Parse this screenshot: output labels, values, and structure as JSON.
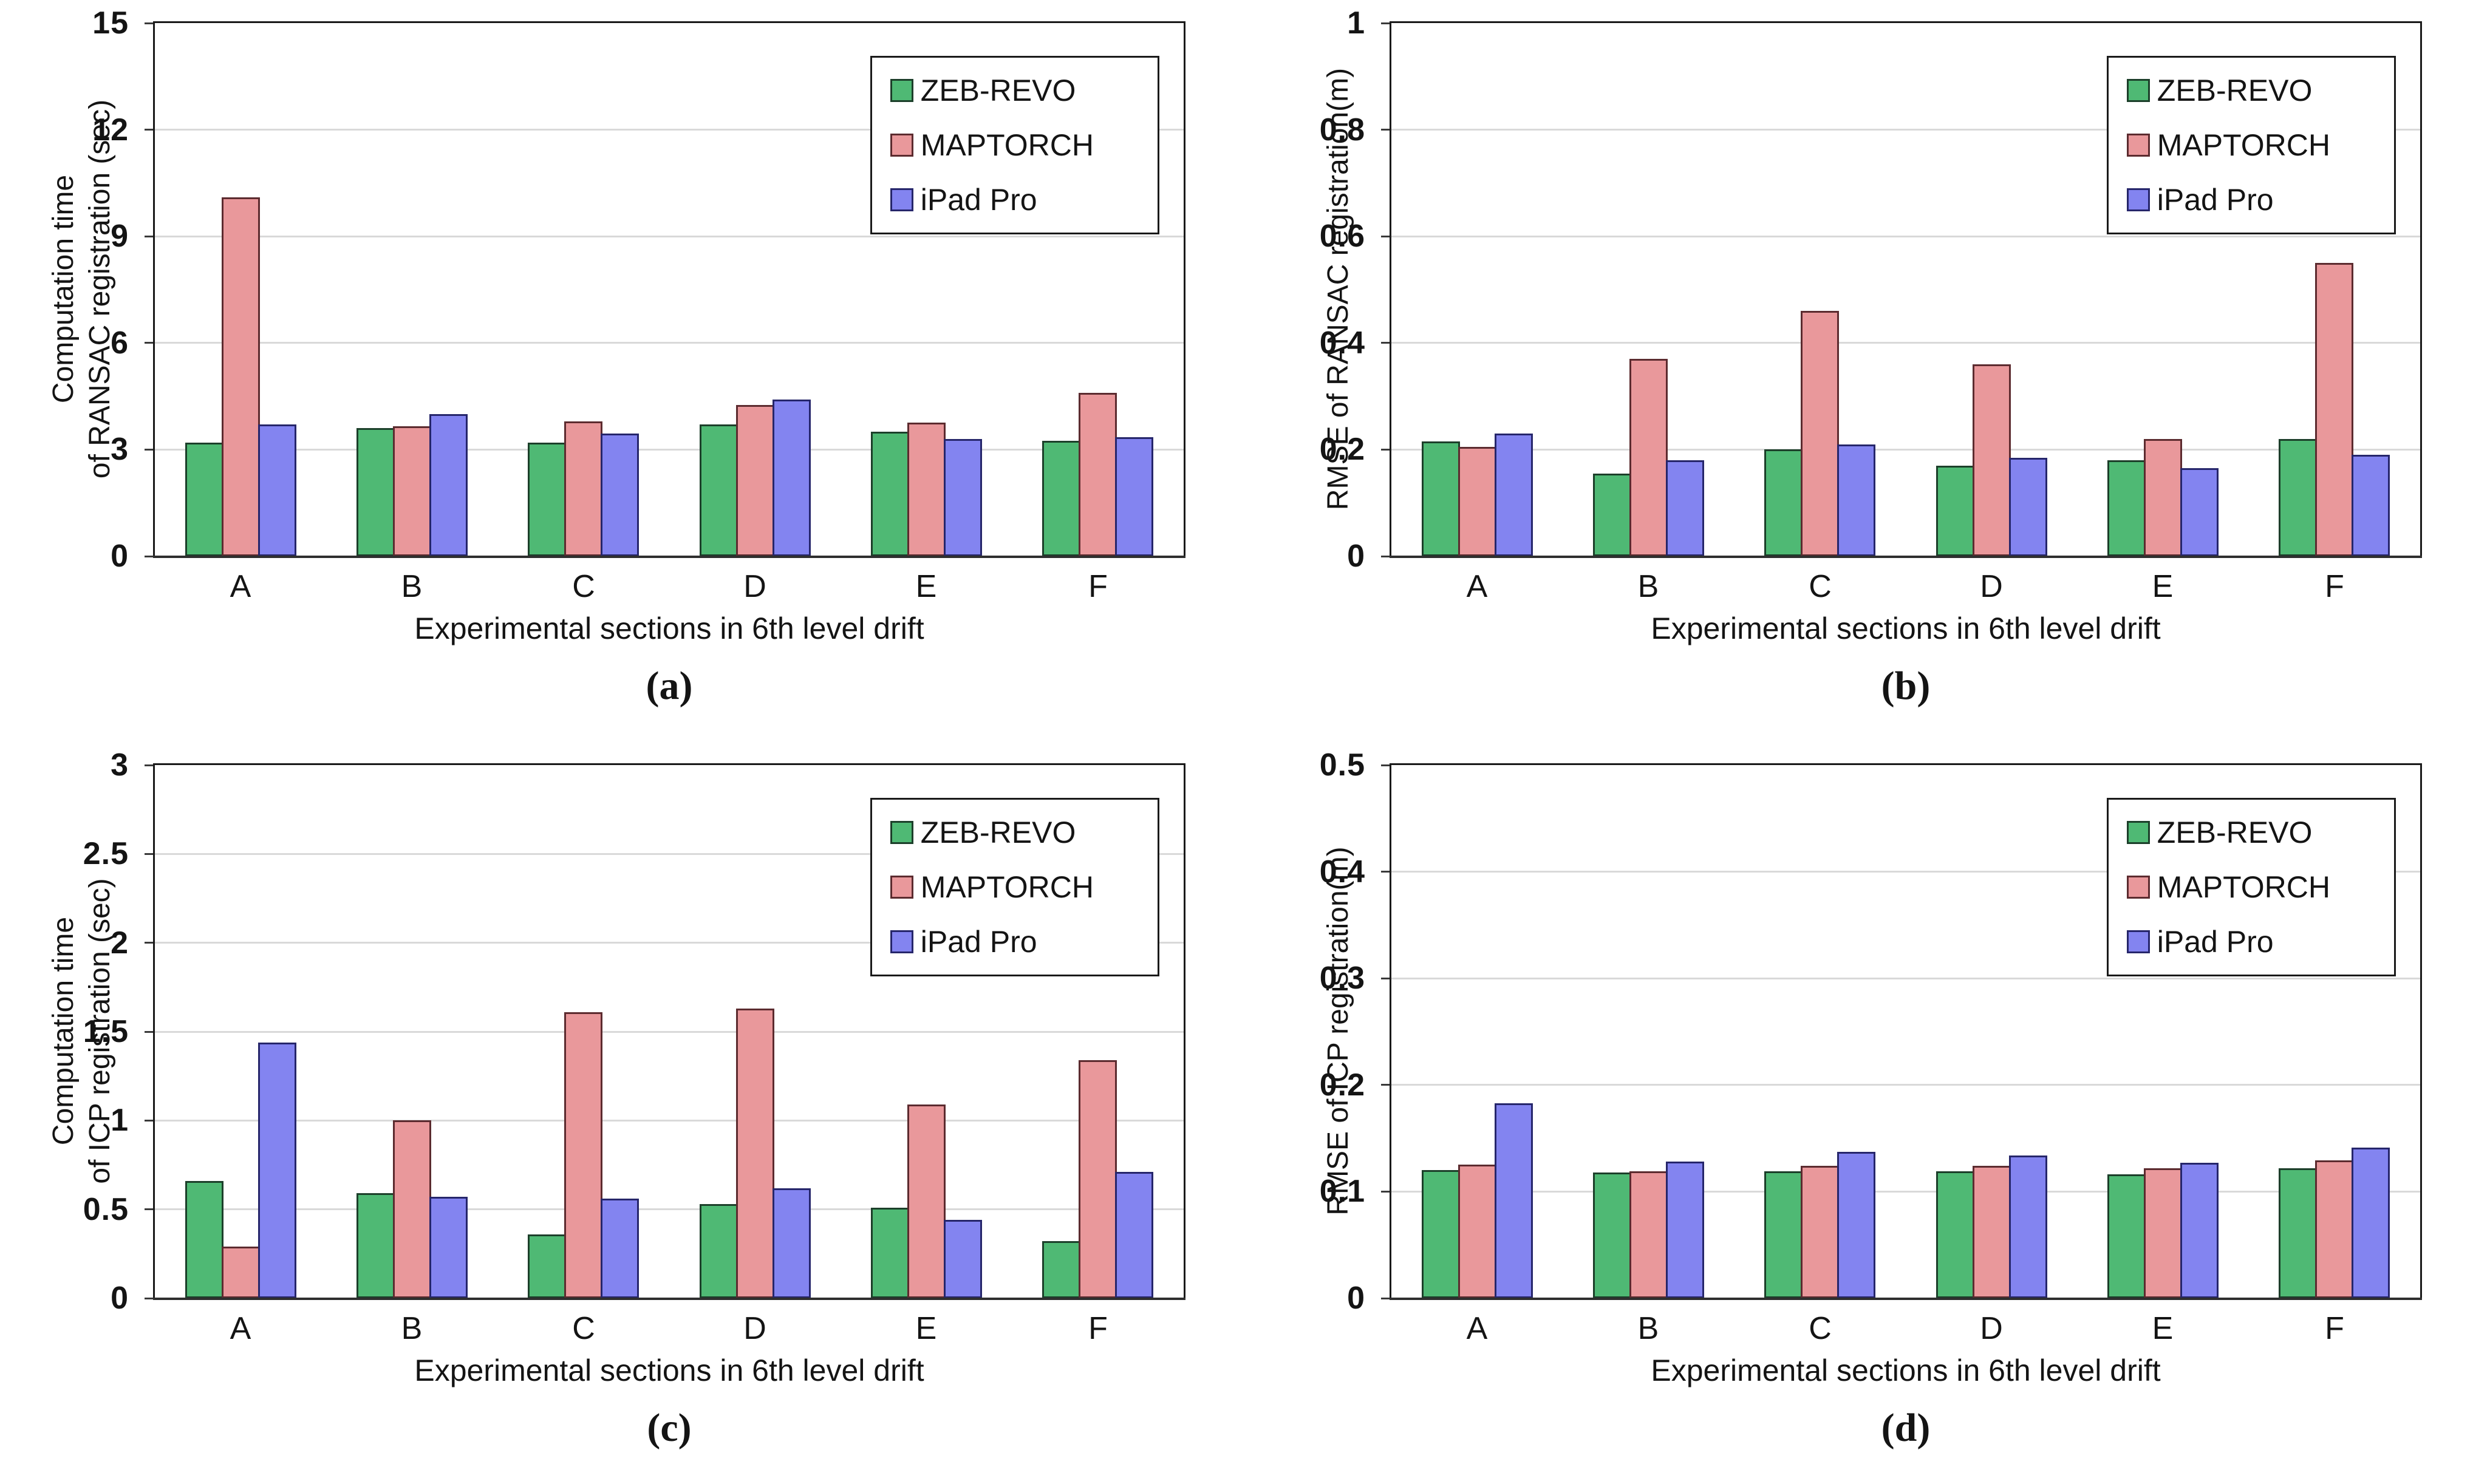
{
  "page": {
    "background": "#ffffff"
  },
  "colors": {
    "zeb_revo_fill": "#4FB974",
    "zeb_revo_border": "#1c3f2a",
    "maptorch_fill": "#E9989B",
    "maptorch_border": "#5c2b2f",
    "ipad_pro_fill": "#8384F0",
    "ipad_pro_border": "#26266b",
    "gridline": "#d9d9d9",
    "axis": "#2f2f2f",
    "plot_border": "#1a1a1a"
  },
  "chart_data": [
    {
      "id": "a",
      "type": "bar",
      "caption": "(a)",
      "grid": true,
      "legend_position": "top-right",
      "ylabel_lines": [
        "Computation time",
        "of RANSAC registration (sec)"
      ],
      "xlabel": "Experimental sections in 6th level drift",
      "ylim": [
        0,
        15
      ],
      "yticks": [
        {
          "v": 0,
          "label": "0"
        },
        {
          "v": 3,
          "label": "3"
        },
        {
          "v": 6,
          "label": "6"
        },
        {
          "v": 9,
          "label": "9"
        },
        {
          "v": 12,
          "label": "12"
        },
        {
          "v": 15,
          "label": "15"
        }
      ],
      "categories": [
        "A",
        "B",
        "C",
        "D",
        "E",
        "F"
      ],
      "series": [
        {
          "name": "ZEB-REVO",
          "fill": "#4FB974",
          "border": "#1c3f2a",
          "values": [
            3.2,
            3.6,
            3.2,
            3.7,
            3.5,
            3.25
          ]
        },
        {
          "name": "MAPTORCH",
          "fill": "#E9989B",
          "border": "#5c2b2f",
          "values": [
            10.1,
            3.65,
            3.8,
            4.25,
            3.75,
            4.6
          ]
        },
        {
          "name": "iPad Pro",
          "fill": "#8384F0",
          "border": "#26266b",
          "values": [
            3.7,
            4.0,
            3.45,
            4.4,
            3.3,
            3.35
          ]
        }
      ]
    },
    {
      "id": "b",
      "type": "bar",
      "caption": "(b)",
      "grid": true,
      "legend_position": "top-right",
      "ylabel_lines": [
        "RMSE of RANSAC registration(m)"
      ],
      "xlabel": "Experimental sections in 6th level drift",
      "ylim": [
        0,
        1
      ],
      "yticks": [
        {
          "v": 0,
          "label": "0"
        },
        {
          "v": 0.2,
          "label": "0.2"
        },
        {
          "v": 0.4,
          "label": "0.4"
        },
        {
          "v": 0.6,
          "label": "0.6"
        },
        {
          "v": 0.8,
          "label": "0.8"
        },
        {
          "v": 1,
          "label": "1"
        }
      ],
      "categories": [
        "A",
        "B",
        "C",
        "D",
        "E",
        "F"
      ],
      "series": [
        {
          "name": "ZEB-REVO",
          "fill": "#4FB974",
          "border": "#1c3f2a",
          "values": [
            0.215,
            0.155,
            0.2,
            0.17,
            0.18,
            0.22
          ]
        },
        {
          "name": "MAPTORCH",
          "fill": "#E9989B",
          "border": "#5c2b2f",
          "values": [
            0.205,
            0.37,
            0.46,
            0.36,
            0.22,
            0.55
          ]
        },
        {
          "name": "iPad Pro",
          "fill": "#8384F0",
          "border": "#26266b",
          "values": [
            0.23,
            0.18,
            0.21,
            0.185,
            0.165,
            0.19
          ]
        }
      ]
    },
    {
      "id": "c",
      "type": "bar",
      "caption": "(c)",
      "grid": true,
      "legend_position": "top-right",
      "ylabel_lines": [
        "Computation time",
        "of ICP registration (sec)"
      ],
      "xlabel": "Experimental sections in 6th level drift",
      "ylim": [
        0,
        3
      ],
      "yticks": [
        {
          "v": 0,
          "label": "0"
        },
        {
          "v": 0.5,
          "label": "0.5"
        },
        {
          "v": 1,
          "label": "1"
        },
        {
          "v": 1.5,
          "label": "1.5"
        },
        {
          "v": 2,
          "label": "2"
        },
        {
          "v": 2.5,
          "label": "2.5"
        },
        {
          "v": 3,
          "label": "3"
        }
      ],
      "categories": [
        "A",
        "B",
        "C",
        "D",
        "E",
        "F"
      ],
      "series": [
        {
          "name": "ZEB-REVO",
          "fill": "#4FB974",
          "border": "#1c3f2a",
          "values": [
            0.66,
            0.59,
            0.36,
            0.53,
            0.51,
            0.32
          ]
        },
        {
          "name": "MAPTORCH",
          "fill": "#E9989B",
          "border": "#5c2b2f",
          "values": [
            0.29,
            1.0,
            1.61,
            1.63,
            1.09,
            1.34
          ]
        },
        {
          "name": "iPad Pro",
          "fill": "#8384F0",
          "border": "#26266b",
          "values": [
            1.44,
            0.57,
            0.56,
            0.62,
            0.44,
            0.71
          ]
        }
      ]
    },
    {
      "id": "d",
      "type": "bar",
      "caption": "(d)",
      "grid": true,
      "legend_position": "top-right",
      "ylabel_lines": [
        "RMSE of ICP registration(m)"
      ],
      "xlabel": "Experimental sections in 6th level drift",
      "ylim": [
        0,
        0.5
      ],
      "yticks": [
        {
          "v": 0,
          "label": "0"
        },
        {
          "v": 0.1,
          "label": "0.1"
        },
        {
          "v": 0.2,
          "label": "0.2"
        },
        {
          "v": 0.3,
          "label": "0.3"
        },
        {
          "v": 0.4,
          "label": "0.4"
        },
        {
          "v": 0.5,
          "label": "0.5"
        }
      ],
      "categories": [
        "A",
        "B",
        "C",
        "D",
        "E",
        "F"
      ],
      "series": [
        {
          "name": "ZEB-REVO",
          "fill": "#4FB974",
          "border": "#1c3f2a",
          "values": [
            0.12,
            0.118,
            0.119,
            0.119,
            0.116,
            0.122
          ]
        },
        {
          "name": "MAPTORCH",
          "fill": "#E9989B",
          "border": "#5c2b2f",
          "values": [
            0.125,
            0.119,
            0.124,
            0.124,
            0.122,
            0.129
          ]
        },
        {
          "name": "iPad Pro",
          "fill": "#8384F0",
          "border": "#26266b",
          "values": [
            0.183,
            0.128,
            0.137,
            0.134,
            0.127,
            0.141
          ]
        }
      ]
    }
  ]
}
